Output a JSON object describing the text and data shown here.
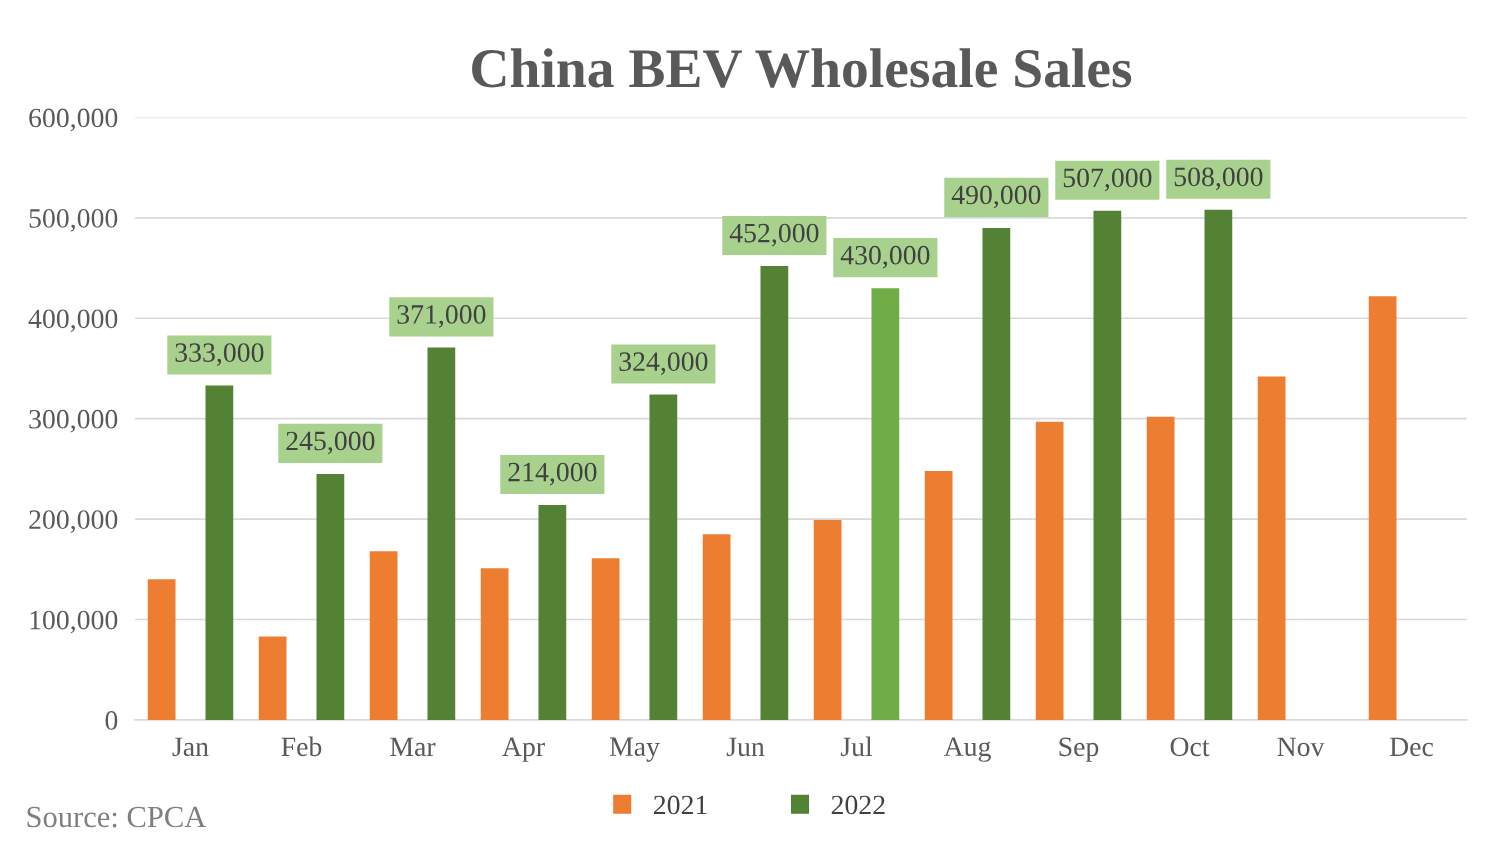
{
  "chart_data": {
    "type": "bar",
    "title": "China BEV Wholesale Sales",
    "categories": [
      "Jan",
      "Feb",
      "Mar",
      "Apr",
      "May",
      "Jun",
      "Jul",
      "Aug",
      "Sep",
      "Oct",
      "Nov",
      "Dec"
    ],
    "series": [
      {
        "name": "2021",
        "color": "#ed7d31",
        "values": [
          140000,
          83000,
          168000,
          151000,
          161000,
          185000,
          199000,
          248000,
          297000,
          302000,
          342000,
          422000
        ]
      },
      {
        "name": "2022",
        "color": "#548235",
        "colors": [
          "#548235",
          "#548235",
          "#548235",
          "#548235",
          "#548235",
          "#548235",
          "#70ad47",
          "#548235",
          "#548235",
          "#548235",
          "#548235",
          "#548235"
        ],
        "values": [
          333000,
          245000,
          371000,
          214000,
          324000,
          452000,
          430000,
          490000,
          507000,
          508000,
          null,
          null
        ],
        "value_labels": [
          "333,000",
          "245,000",
          "371,000",
          "214,000",
          "324,000",
          "452,000",
          "430,000",
          "490,000",
          "507,000",
          "508,000",
          null,
          null
        ]
      }
    ],
    "ylim": [
      0,
      600000
    ],
    "yticks": [
      {
        "value": 0,
        "label": "0"
      },
      {
        "value": 100000,
        "label": "100,000"
      },
      {
        "value": 200000,
        "label": "200,000"
      },
      {
        "value": 300000,
        "label": "300,000"
      },
      {
        "value": 400000,
        "label": "400,000"
      },
      {
        "value": 500000,
        "label": "500,000"
      },
      {
        "value": 600000,
        "label": "600,000"
      }
    ],
    "grid": "y",
    "legend": "bottom",
    "annotations": [
      "Source: CPCA"
    ]
  }
}
